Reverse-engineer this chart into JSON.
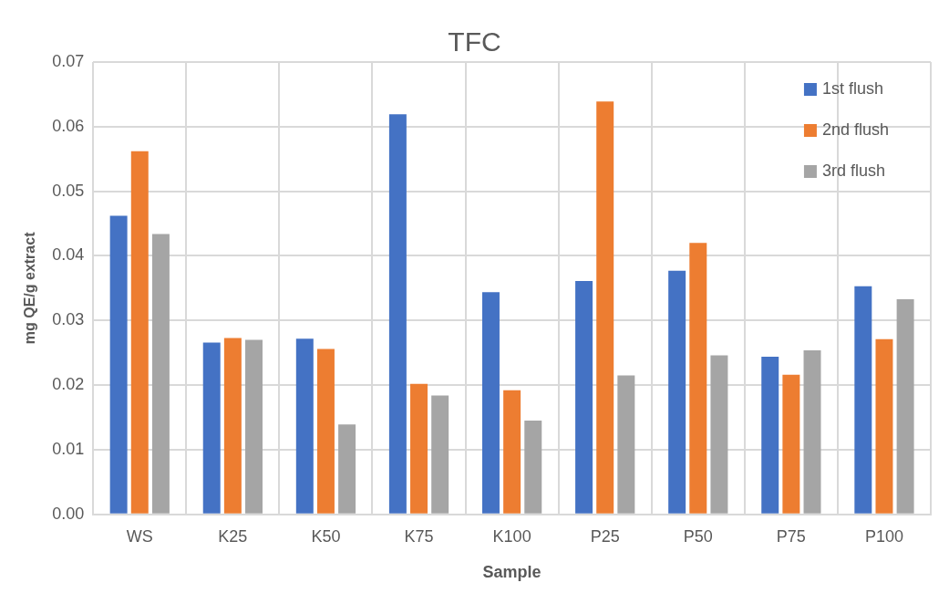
{
  "chart_data": {
    "type": "bar",
    "title": "TFC",
    "xlabel": "Sample",
    "ylabel": "mg QE/g extract",
    "categories": [
      "WS",
      "K25",
      "K50",
      "K75",
      "K100",
      "P25",
      "P50",
      "P75",
      "P100"
    ],
    "series": [
      {
        "name": "1st flush",
        "color": "#4472c4",
        "values": [
          0.0462,
          0.0266,
          0.0272,
          0.0619,
          0.0344,
          0.0361,
          0.0377,
          0.0244,
          0.0353
        ]
      },
      {
        "name": "2nd flush",
        "color": "#ed7d31",
        "values": [
          0.0562,
          0.0273,
          0.0256,
          0.0202,
          0.0192,
          0.0639,
          0.042,
          0.0216,
          0.0271
        ]
      },
      {
        "name": "3rd flush",
        "color": "#a5a5a5",
        "values": [
          0.0434,
          0.027,
          0.0139,
          0.0184,
          0.0145,
          0.0215,
          0.0246,
          0.0254,
          0.0333
        ]
      }
    ],
    "ylim": [
      0,
      0.07
    ],
    "yticks": [
      {
        "value": 0,
        "label": "0.00"
      },
      {
        "value": 0.01,
        "label": "0.01"
      },
      {
        "value": 0.02,
        "label": "0.02"
      },
      {
        "value": 0.03,
        "label": "0.03"
      },
      {
        "value": 0.04,
        "label": "0.04"
      },
      {
        "value": 0.05,
        "label": "0.05"
      },
      {
        "value": 0.06,
        "label": "0.06"
      },
      {
        "value": 0.07,
        "label": "0.07"
      }
    ],
    "grid": true,
    "legend": "top right"
  }
}
